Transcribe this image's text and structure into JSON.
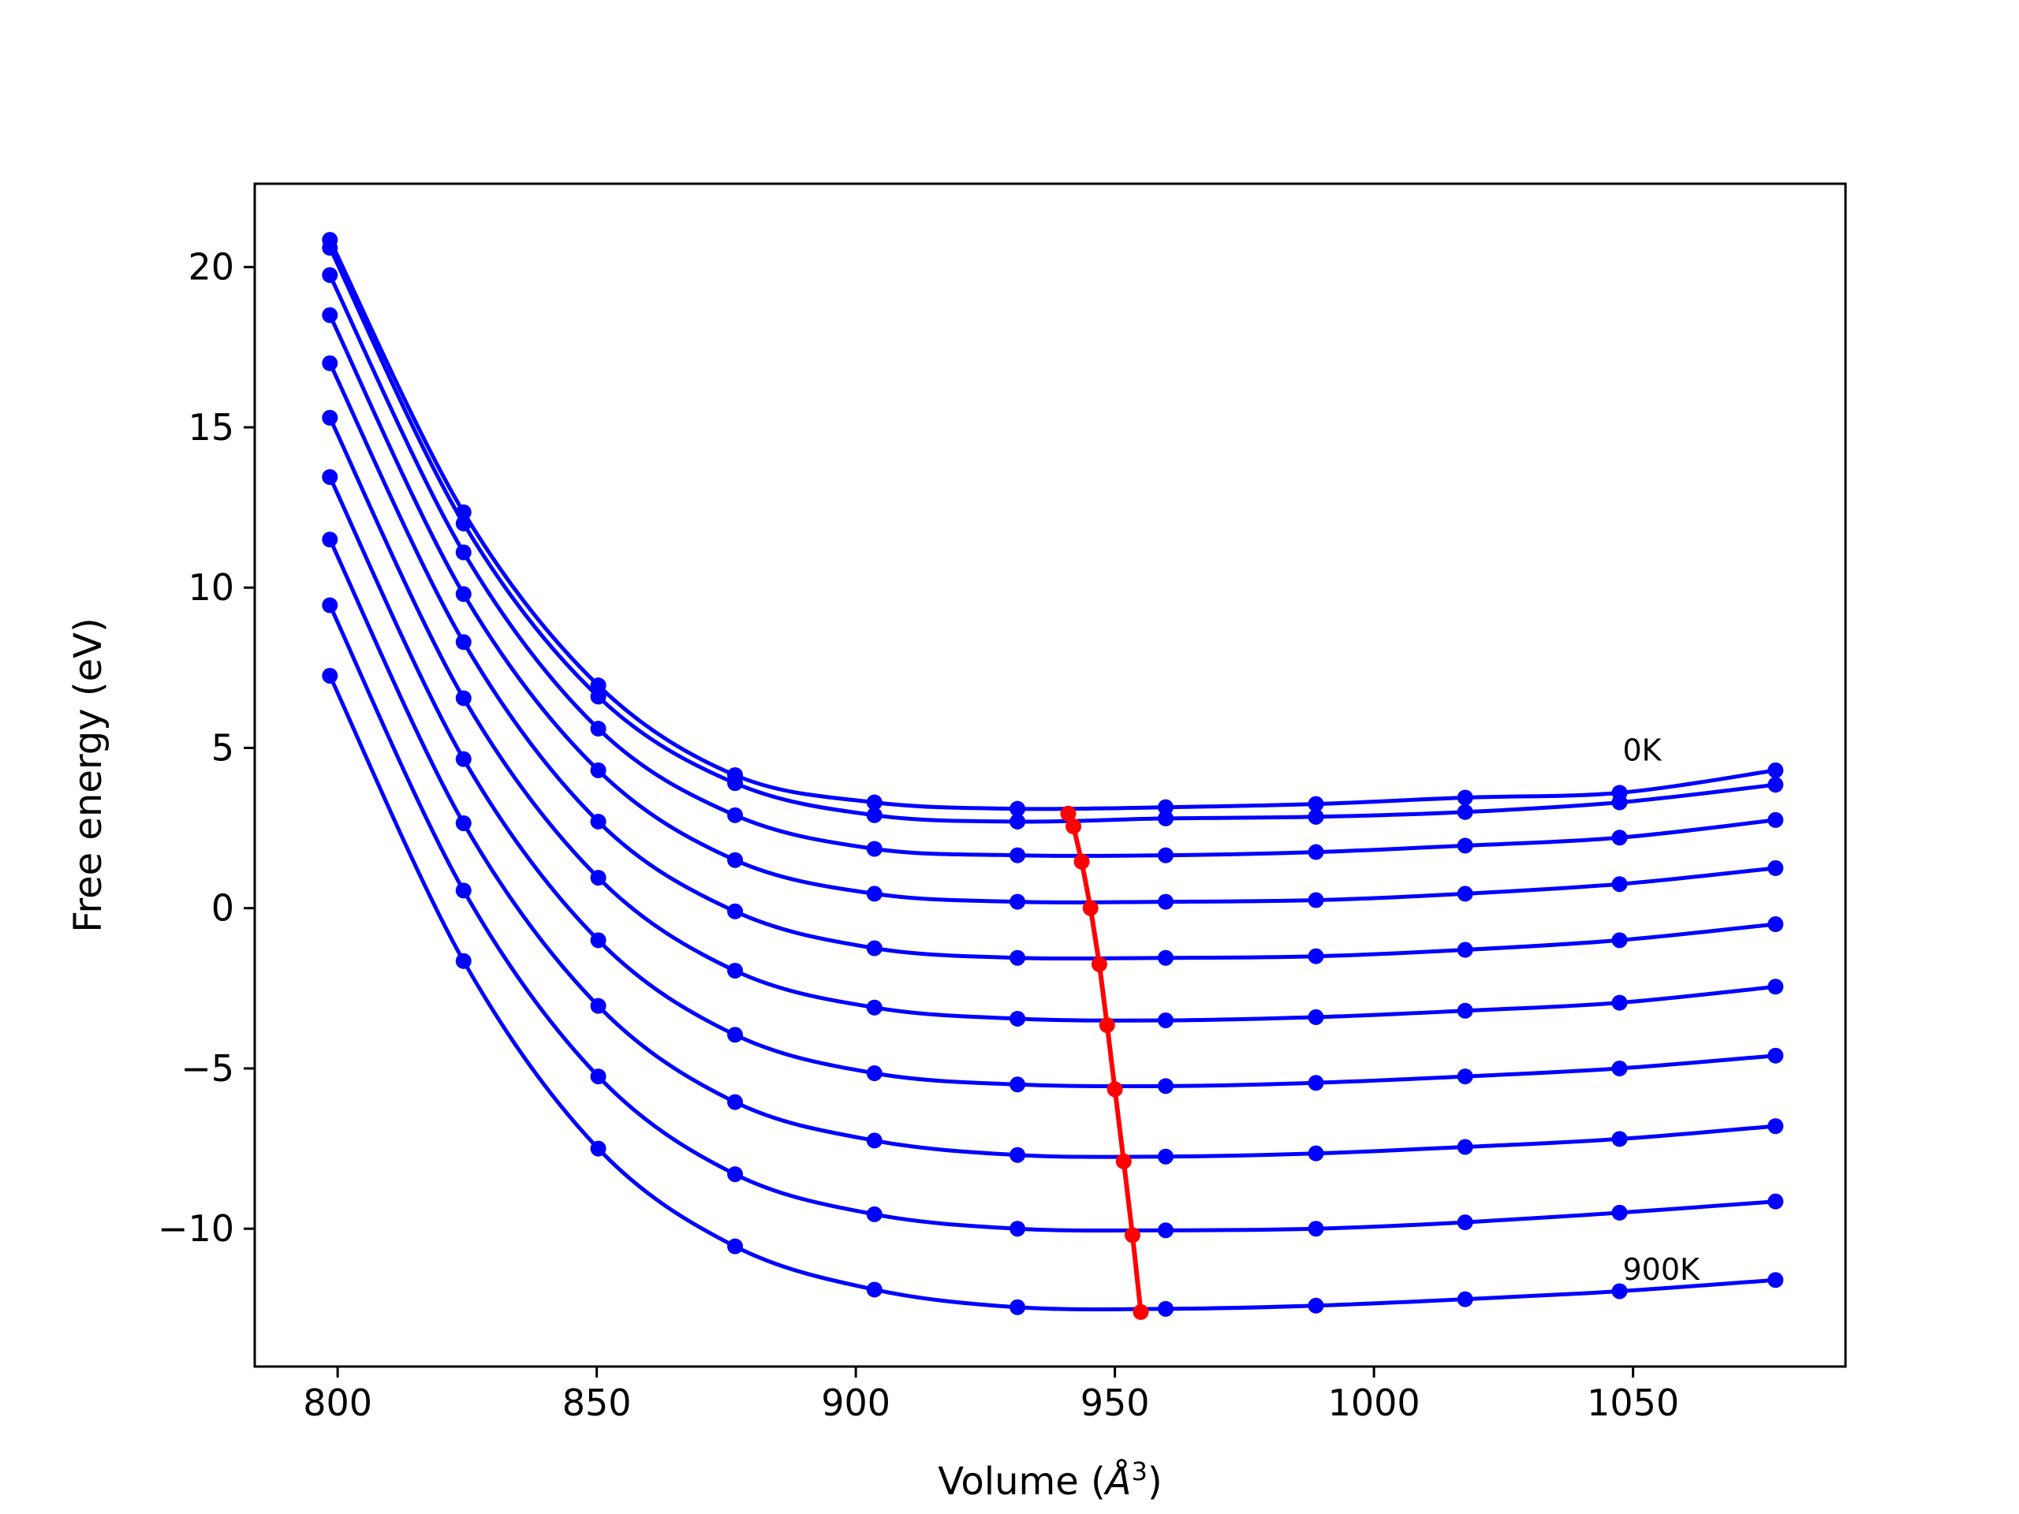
{
  "chart_data": {
    "type": "line",
    "title": "",
    "xlabel": "Volume (",
    "xlabel_unit": "Å",
    "xlabel_exp": "3",
    "xlabel_close": ")",
    "ylabel": "Free energy (eV)",
    "xlim": [
      784,
      1091
    ],
    "ylim": [
      -14.3,
      22.6
    ],
    "xticks": [
      800,
      850,
      900,
      950,
      1000,
      1050
    ],
    "xtick_labels": [
      "800",
      "850",
      "900",
      "950",
      "1000",
      "1050"
    ],
    "yticks": [
      20,
      15,
      10,
      5,
      0,
      -5,
      -10
    ],
    "ytick_labels": [
      "20",
      "15",
      "10",
      "5",
      "0",
      "−5",
      "−10"
    ],
    "grid": false,
    "annotations": [
      {
        "text": "0K",
        "x": 1048,
        "y": 4.6
      },
      {
        "text": "900K",
        "x": 1048,
        "y": -11.6
      }
    ],
    "colors": {
      "curves": "#0000ff",
      "minimum_line": "#ff0000",
      "axes": "#000000"
    },
    "x": [
      798.5,
      824.3,
      850.3,
      876.7,
      903.6,
      931.2,
      959.8,
      988.8,
      1017.6,
      1047.4,
      1077.5
    ],
    "series": [
      {
        "y": [
          20.85,
          12.35,
          6.95,
          4.15,
          3.3,
          3.1,
          3.15,
          3.25,
          3.45,
          3.6,
          4.3
        ]
      },
      {
        "y": [
          20.6,
          12.0,
          6.6,
          3.9,
          2.9,
          2.7,
          2.8,
          2.85,
          3.0,
          3.3,
          3.85
        ]
      },
      {
        "y": [
          19.75,
          11.1,
          5.6,
          2.9,
          1.85,
          1.65,
          1.65,
          1.75,
          1.95,
          2.2,
          2.75
        ]
      },
      {
        "y": [
          18.5,
          9.8,
          4.3,
          1.5,
          0.45,
          0.2,
          0.2,
          0.25,
          0.45,
          0.75,
          1.25
        ]
      },
      {
        "y": [
          17.0,
          8.3,
          2.7,
          -0.1,
          -1.25,
          -1.55,
          -1.55,
          -1.5,
          -1.3,
          -1.0,
          -0.5
        ]
      },
      {
        "y": [
          15.3,
          6.55,
          0.95,
          -1.95,
          -3.1,
          -3.45,
          -3.5,
          -3.4,
          -3.2,
          -2.95,
          -2.45
        ]
      },
      {
        "y": [
          13.45,
          4.65,
          -1.0,
          -3.95,
          -5.15,
          -5.5,
          -5.55,
          -5.45,
          -5.25,
          -5.0,
          -4.6
        ]
      },
      {
        "y": [
          11.5,
          2.65,
          -3.05,
          -6.05,
          -7.25,
          -7.7,
          -7.75,
          -7.65,
          -7.45,
          -7.2,
          -6.8
        ]
      },
      {
        "y": [
          9.45,
          0.55,
          -5.25,
          -8.3,
          -9.55,
          -10.0,
          -10.05,
          -10.0,
          -9.8,
          -9.5,
          -9.15
        ]
      },
      {
        "y": [
          7.25,
          -1.65,
          -7.5,
          -10.55,
          -11.9,
          -12.45,
          -12.5,
          -12.4,
          -12.2,
          -11.95,
          -11.6
        ]
      }
    ],
    "minimum_line": {
      "x": [
        941.0,
        942.0,
        943.6,
        945.3,
        947.0,
        948.5,
        950.0,
        951.7,
        953.4,
        955.0
      ],
      "y": [
        2.95,
        2.55,
        1.45,
        0.0,
        -1.75,
        -3.65,
        -5.65,
        -7.9,
        -10.2,
        -12.6
      ]
    }
  }
}
